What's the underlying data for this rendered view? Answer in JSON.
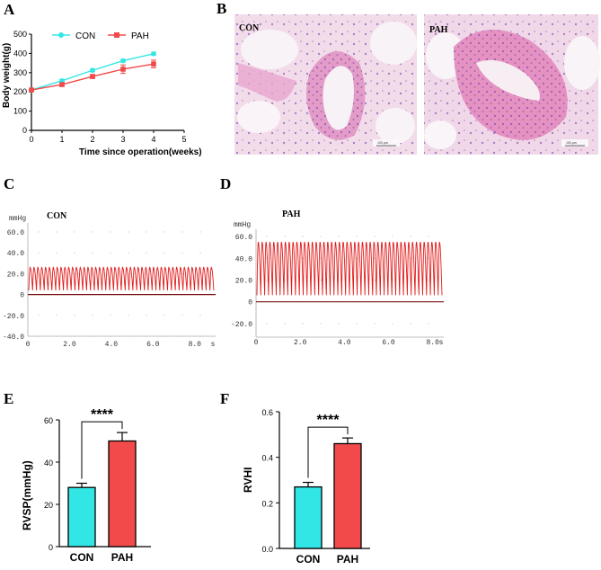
{
  "panels": {
    "a": "A",
    "b": "B",
    "c": "C",
    "d": "D",
    "e": "E",
    "f": "F"
  },
  "colors": {
    "con": "#33e6e6",
    "pah": "#f24a4a",
    "trace": "#e21b1b",
    "tissue": "#e59ac6",
    "stain": "#7c4fb0"
  },
  "histology": {
    "con_label": "CON",
    "pah_label": "PAH",
    "con_scale": "100 μm",
    "pah_scale": "100 μm"
  },
  "chart_data": [
    {
      "id": "A",
      "type": "line",
      "xlabel": "Time since operation(weeks)",
      "ylabel": "Body weight(g)",
      "xlim": [
        0,
        5
      ],
      "ylim": [
        0,
        500
      ],
      "xticks": [
        0,
        1,
        2,
        3,
        4,
        5
      ],
      "yticks": [
        0,
        100,
        200,
        300,
        400,
        500
      ],
      "x": [
        0,
        1,
        2,
        3,
        4
      ],
      "series": [
        {
          "name": "CON",
          "values": [
            210,
            258,
            312,
            362,
            398
          ],
          "errors": [
            5,
            6,
            7,
            7,
            7
          ]
        },
        {
          "name": "PAH",
          "values": [
            210,
            238,
            280,
            318,
            345
          ],
          "errors": [
            5,
            8,
            10,
            22,
            20
          ]
        }
      ],
      "legend": "top"
    },
    {
      "id": "C",
      "type": "line",
      "title": "CON",
      "unit": "mmHg",
      "xlim": [
        0,
        9
      ],
      "ylim": [
        -40,
        60
      ],
      "xticks": [
        0,
        2,
        4,
        6,
        8
      ],
      "xtick_labels": [
        "0",
        "2.0",
        "4.0",
        "6.0",
        "8.0",
        "s"
      ],
      "yticks": [
        60,
        40,
        20,
        0,
        -20,
        -40
      ],
      "ytick_labels": [
        "60.0",
        "40.0",
        "20.0",
        "0",
        "-20.0",
        "-40.0"
      ],
      "signal": {
        "min": 4,
        "max": 26,
        "cycles": 48
      }
    },
    {
      "id": "D",
      "type": "line",
      "title": "PAH",
      "unit": "mmHg",
      "xlim": [
        0,
        8.5
      ],
      "ylim": [
        -30,
        65
      ],
      "xticks": [
        0,
        2,
        4,
        6,
        8
      ],
      "xtick_labels": [
        "0",
        "2.0",
        "4.0",
        "6.0",
        "8.0",
        "s"
      ],
      "yticks": [
        60,
        40,
        20,
        0,
        -20
      ],
      "ytick_labels": [
        "60.0",
        "40.0",
        "20.0",
        "0",
        "-20.0"
      ],
      "signal": {
        "min": 6,
        "max": 55,
        "cycles": 48
      }
    },
    {
      "id": "E",
      "type": "bar",
      "ylabel": "RVSP(mmHg)",
      "categories": [
        "CON",
        "PAH"
      ],
      "values": [
        28,
        50
      ],
      "errors": [
        2,
        4
      ],
      "ylim": [
        0,
        60
      ],
      "yticks": [
        0,
        20,
        40,
        60
      ],
      "significance": "****"
    },
    {
      "id": "F",
      "type": "bar",
      "ylabel": "RVHI",
      "categories": [
        "CON",
        "PAH"
      ],
      "values": [
        0.27,
        0.46
      ],
      "errors": [
        0.02,
        0.025
      ],
      "ylim": [
        0,
        0.6
      ],
      "yticks": [
        0.0,
        0.2,
        0.4,
        0.6
      ],
      "ytick_labels": [
        "0.0",
        "0.2",
        "0.4",
        "0.6"
      ],
      "significance": "****"
    }
  ]
}
